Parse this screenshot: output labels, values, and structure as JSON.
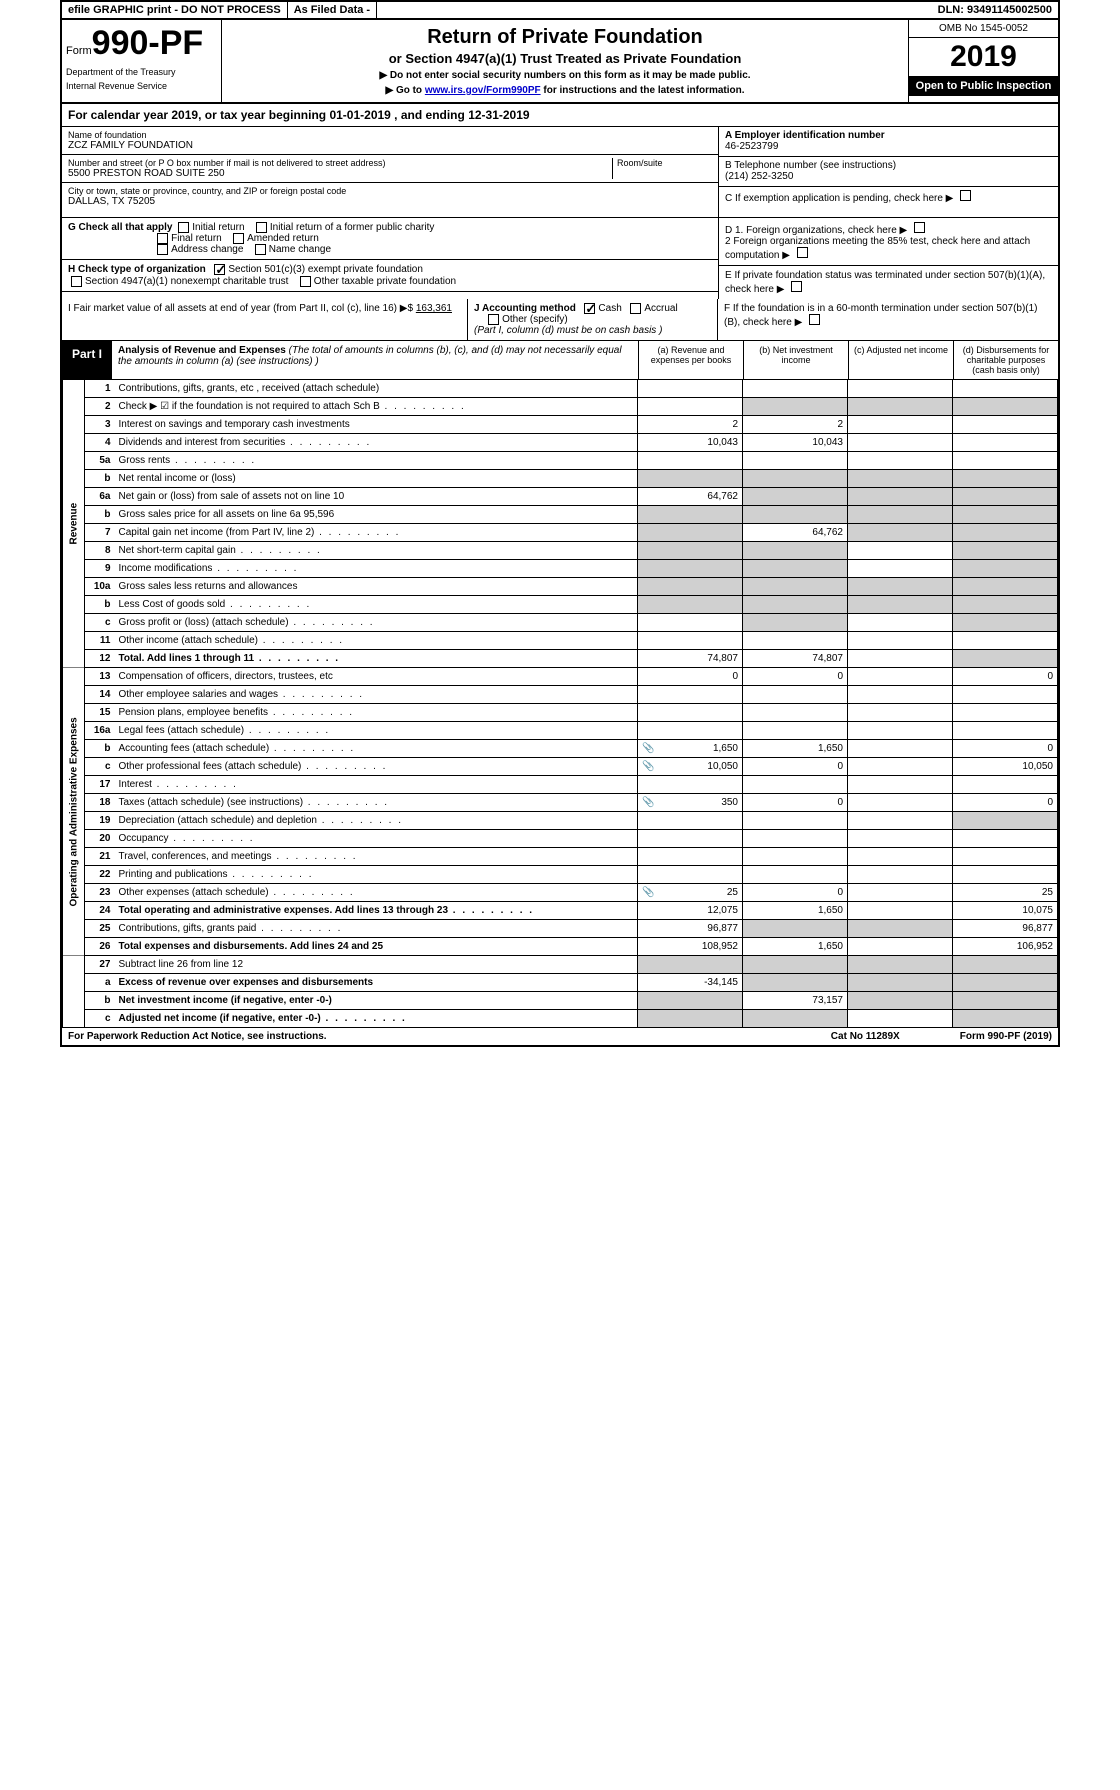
{
  "topbar": {
    "efile": "efile GRAPHIC print - DO NOT PROCESS",
    "asfiled": "As Filed Data -",
    "dln_label": "DLN: 93491145002500"
  },
  "header": {
    "form_prefix": "Form",
    "form_num": "990-PF",
    "dept1": "Department of the Treasury",
    "dept2": "Internal Revenue Service",
    "title": "Return of Private Foundation",
    "subtitle": "or Section 4947(a)(1) Trust Treated as Private Foundation",
    "note1": "▶ Do not enter social security numbers on this form as it may be made public.",
    "note2_pre": "▶ Go to ",
    "note2_link": "www.irs.gov/Form990PF",
    "note2_post": " for instructions and the latest information.",
    "omb": "OMB No 1545-0052",
    "year": "2019",
    "open": "Open to Public Inspection"
  },
  "calyear": {
    "text_pre": "For calendar year 2019, or tax year beginning ",
    "begin": "01-01-2019",
    "text_mid": " , and ending ",
    "end": "12-31-2019"
  },
  "info": {
    "name_label": "Name of foundation",
    "name": "ZCZ FAMILY FOUNDATION",
    "addr_label": "Number and street (or P O  box number if mail is not delivered to street address)",
    "addr": "5500 PRESTON ROAD SUITE 250",
    "room_label": "Room/suite",
    "city_label": "City or town, state or province, country, and ZIP or foreign postal code",
    "city": "DALLAS, TX  75205",
    "a_label": "A Employer identification number",
    "a_val": "46-2523799",
    "b_label": "B Telephone number (see instructions)",
    "b_val": "(214) 252-3250",
    "c_label": "C If exemption application is pending, check here",
    "d1": "D 1. Foreign organizations, check here",
    "d2": "2 Foreign organizations meeting the 85% test, check here and attach computation",
    "e": "E  If private foundation status was terminated under section 507(b)(1)(A), check here",
    "f": "F  If the foundation is in a 60-month termination under section 507(b)(1)(B), check here"
  },
  "g": {
    "label": "G Check all that apply",
    "opts": [
      "Initial return",
      "Initial return of a former public charity",
      "Final return",
      "Amended return",
      "Address change",
      "Name change"
    ]
  },
  "h": {
    "label": "H Check type of organization",
    "opt1": "Section 501(c)(3) exempt private foundation",
    "opt2": "Section 4947(a)(1) nonexempt charitable trust",
    "opt3": "Other taxable private foundation"
  },
  "i": {
    "label": "I Fair market value of all assets at end of year (from Part II, col  (c), line 16) ▶$",
    "val": "163,361"
  },
  "j": {
    "label": "J Accounting method",
    "cash": "Cash",
    "accrual": "Accrual",
    "other": "Other (specify)",
    "note": "(Part I, column (d) must be on cash basis )"
  },
  "part1": {
    "label": "Part I",
    "title": "Analysis of Revenue and Expenses",
    "desc": " (The total of amounts in columns (b), (c), and (d) may not necessarily equal the amounts in column (a) (see instructions) )",
    "col_a": "(a) Revenue and expenses per books",
    "col_b": "(b) Net investment income",
    "col_c": "(c) Adjusted net income",
    "col_d": "(d) Disbursements for charitable purposes (cash basis only)"
  },
  "side_labels": {
    "rev": "Revenue",
    "exp": "Operating and Administrative Expenses"
  },
  "rows": [
    {
      "n": "1",
      "d": "Contributions, gifts, grants, etc , received (attach schedule)",
      "a": "",
      "b": "",
      "c": "",
      "dd": ""
    },
    {
      "n": "2",
      "d": "Check ▶ ☑ if the foundation is not required to attach Sch B",
      "a": "",
      "b": "",
      "c": "",
      "dd": "",
      "shade_bcd": true,
      "dots": true
    },
    {
      "n": "3",
      "d": "Interest on savings and temporary cash investments",
      "a": "2",
      "b": "2",
      "c": "",
      "dd": ""
    },
    {
      "n": "4",
      "d": "Dividends and interest from securities",
      "a": "10,043",
      "b": "10,043",
      "c": "",
      "dd": "",
      "dots": true
    },
    {
      "n": "5a",
      "d": "Gross rents",
      "a": "",
      "b": "",
      "c": "",
      "dd": "",
      "dots": true
    },
    {
      "n": "b",
      "d": "Net rental income or (loss)",
      "a": "",
      "b": "",
      "c": "",
      "dd": "",
      "shade_all": true
    },
    {
      "n": "6a",
      "d": "Net gain or (loss) from sale of assets not on line 10",
      "a": "64,762",
      "b": "",
      "c": "",
      "dd": "",
      "shade_bcd": true
    },
    {
      "n": "b",
      "d": "Gross sales price for all assets on line 6a   95,596",
      "a": "",
      "b": "",
      "c": "",
      "dd": "",
      "shade_all": true
    },
    {
      "n": "7",
      "d": "Capital gain net income (from Part IV, line 2)",
      "a": "",
      "b": "64,762",
      "c": "",
      "dd": "",
      "shade_a": true,
      "shade_cd": true,
      "dots": true
    },
    {
      "n": "8",
      "d": "Net short-term capital gain",
      "a": "",
      "b": "",
      "c": "",
      "dd": "",
      "shade_ab": true,
      "shade_d": true,
      "dots": true
    },
    {
      "n": "9",
      "d": "Income modifications",
      "a": "",
      "b": "",
      "c": "",
      "dd": "",
      "shade_ab": true,
      "shade_d": true,
      "dots": true
    },
    {
      "n": "10a",
      "d": "Gross sales less returns and allowances",
      "a": "",
      "b": "",
      "c": "",
      "dd": "",
      "shade_all": true
    },
    {
      "n": "b",
      "d": "Less  Cost of goods sold",
      "a": "",
      "b": "",
      "c": "",
      "dd": "",
      "shade_all": true,
      "dots": true
    },
    {
      "n": "c",
      "d": "Gross profit or (loss) (attach schedule)",
      "a": "",
      "b": "",
      "c": "",
      "dd": "",
      "shade_b": true,
      "shade_d": true,
      "dots": true
    },
    {
      "n": "11",
      "d": "Other income (attach schedule)",
      "a": "",
      "b": "",
      "c": "",
      "dd": "",
      "dots": true
    },
    {
      "n": "12",
      "d": "Total. Add lines 1 through 11",
      "a": "74,807",
      "b": "74,807",
      "c": "",
      "dd": "",
      "bold": true,
      "dots": true,
      "shade_d": true
    }
  ],
  "exp_rows": [
    {
      "n": "13",
      "d": "Compensation of officers, directors, trustees, etc",
      "a": "0",
      "b": "0",
      "c": "",
      "dd": "0"
    },
    {
      "n": "14",
      "d": "Other employee salaries and wages",
      "a": "",
      "b": "",
      "c": "",
      "dd": "",
      "dots": true
    },
    {
      "n": "15",
      "d": "Pension plans, employee benefits",
      "a": "",
      "b": "",
      "c": "",
      "dd": "",
      "dots": true
    },
    {
      "n": "16a",
      "d": "Legal fees (attach schedule)",
      "a": "",
      "b": "",
      "c": "",
      "dd": "",
      "dots": true
    },
    {
      "n": "b",
      "d": "Accounting fees (attach schedule)",
      "a": "1,650",
      "b": "1,650",
      "c": "",
      "dd": "0",
      "dots": true,
      "icon": true
    },
    {
      "n": "c",
      "d": "Other professional fees (attach schedule)",
      "a": "10,050",
      "b": "0",
      "c": "",
      "dd": "10,050",
      "dots": true,
      "icon": true
    },
    {
      "n": "17",
      "d": "Interest",
      "a": "",
      "b": "",
      "c": "",
      "dd": "",
      "dots": true
    },
    {
      "n": "18",
      "d": "Taxes (attach schedule) (see instructions)",
      "a": "350",
      "b": "0",
      "c": "",
      "dd": "0",
      "dots": true,
      "icon": true
    },
    {
      "n": "19",
      "d": "Depreciation (attach schedule) and depletion",
      "a": "",
      "b": "",
      "c": "",
      "dd": "",
      "shade_d": true,
      "dots": true
    },
    {
      "n": "20",
      "d": "Occupancy",
      "a": "",
      "b": "",
      "c": "",
      "dd": "",
      "dots": true
    },
    {
      "n": "21",
      "d": "Travel, conferences, and meetings",
      "a": "",
      "b": "",
      "c": "",
      "dd": "",
      "dots": true
    },
    {
      "n": "22",
      "d": "Printing and publications",
      "a": "",
      "b": "",
      "c": "",
      "dd": "",
      "dots": true
    },
    {
      "n": "23",
      "d": "Other expenses (attach schedule)",
      "a": "25",
      "b": "0",
      "c": "",
      "dd": "25",
      "dots": true,
      "icon": true
    },
    {
      "n": "24",
      "d": "Total operating and administrative expenses. Add lines 13 through 23",
      "a": "12,075",
      "b": "1,650",
      "c": "",
      "dd": "10,075",
      "bold": true,
      "dots": true
    },
    {
      "n": "25",
      "d": "Contributions, gifts, grants paid",
      "a": "96,877",
      "b": "",
      "c": "",
      "dd": "96,877",
      "shade_bc": true,
      "dots": true
    },
    {
      "n": "26",
      "d": "Total expenses and disbursements. Add lines 24 and 25",
      "a": "108,952",
      "b": "1,650",
      "c": "",
      "dd": "106,952",
      "bold": true
    }
  ],
  "bottom_rows": [
    {
      "n": "27",
      "d": "Subtract line 26 from line 12",
      "a": "",
      "b": "",
      "c": "",
      "dd": "",
      "shade_all": true
    },
    {
      "n": "a",
      "d": "Excess of revenue over expenses and disbursements",
      "a": "-34,145",
      "b": "",
      "c": "",
      "dd": "",
      "bold": true,
      "shade_bcd": true
    },
    {
      "n": "b",
      "d": "Net investment income (if negative, enter -0-)",
      "a": "",
      "b": "73,157",
      "c": "",
      "dd": "",
      "bold": true,
      "shade_a": true,
      "shade_cd": true
    },
    {
      "n": "c",
      "d": "Adjusted net income (if negative, enter -0-)",
      "a": "",
      "b": "",
      "c": "",
      "dd": "",
      "bold": true,
      "shade_ab": true,
      "shade_d": true,
      "dots": true
    }
  ],
  "footer": {
    "left": "For Paperwork Reduction Act Notice, see instructions.",
    "mid": "Cat  No  11289X",
    "right": "Form 990-PF (2019)"
  }
}
